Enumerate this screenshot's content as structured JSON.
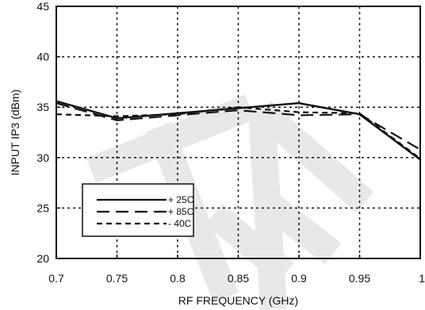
{
  "chart_data": {
    "type": "line",
    "xlabel": "RF FREQUENCY (GHz)",
    "ylabel": "INPUT  IP3 (dBm)",
    "xlim": [
      0.7,
      1.0
    ],
    "ylim": [
      20,
      45
    ],
    "x_ticks": [
      "0.7",
      "0.75",
      "0.8",
      "0.85",
      "0.9",
      "0.95",
      "1"
    ],
    "y_ticks": [
      "20",
      "25",
      "30",
      "35",
      "40",
      "45"
    ],
    "grid": true,
    "legend_position": "lower-left",
    "series": [
      {
        "name": "+ 25C",
        "style": "solid",
        "x": [
          0.7,
          0.75,
          0.8,
          0.85,
          0.9,
          0.95,
          1.0
        ],
        "y": [
          35.6,
          33.9,
          34.4,
          34.9,
          35.4,
          34.3,
          29.8
        ]
      },
      {
        "name": "+ 85C",
        "style": "long-dash",
        "x": [
          0.7,
          0.75,
          0.8,
          0.85,
          0.9,
          0.95,
          1.0
        ],
        "y": [
          35.4,
          33.7,
          34.2,
          34.7,
          34.2,
          34.3,
          30.8
        ]
      },
      {
        "name": "- 40C",
        "style": "short-dash",
        "x": [
          0.7,
          0.75,
          0.8,
          0.85,
          0.9,
          0.95,
          1.0
        ],
        "y": [
          34.3,
          34.1,
          34.3,
          35.0,
          34.5,
          34.4,
          29.9
        ]
      }
    ]
  },
  "colors": {
    "line": "#111111",
    "grid": "#111111",
    "background": "#ffffff",
    "watermark": "#e8e8e8"
  }
}
